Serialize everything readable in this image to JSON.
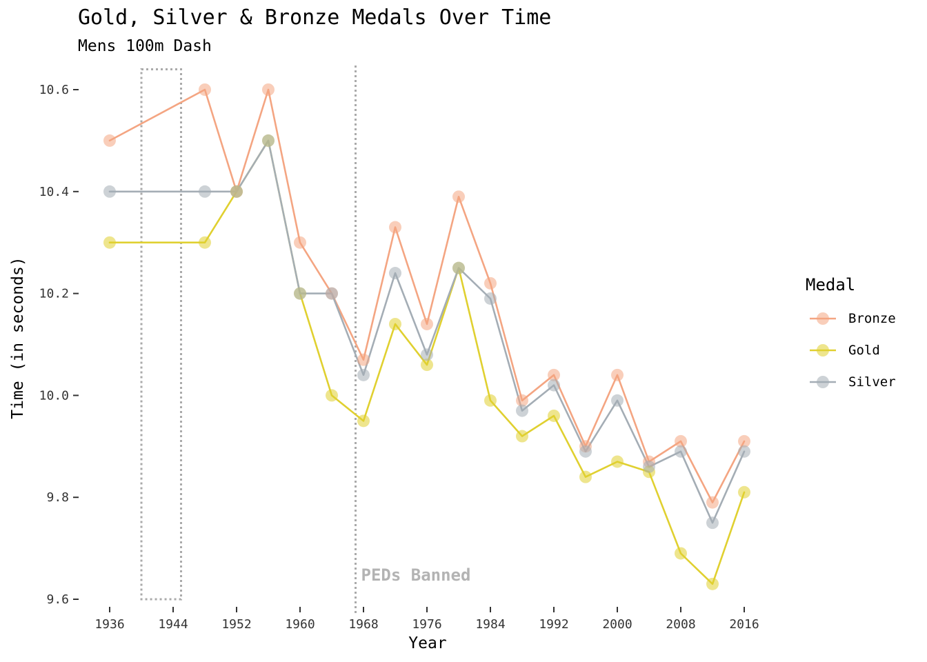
{
  "chart_data": {
    "type": "line",
    "title": "Gold, Silver & Bronze Medals Over Time",
    "subtitle": "Mens 100m Dash",
    "xlabel": "Year",
    "ylabel": "Time (in seconds)",
    "xlim": [
      1934,
      2020
    ],
    "ylim": [
      9.6,
      10.65
    ],
    "x_ticks": [
      1936,
      1944,
      1952,
      1960,
      1968,
      1976,
      1984,
      1992,
      2000,
      2008,
      2016
    ],
    "y_ticks": [
      9.6,
      9.8,
      10.0,
      10.2,
      10.4,
      10.6
    ],
    "y_tick_labels": [
      "9.6",
      "9.8",
      "10.0",
      "10.2",
      "10.4",
      "10.6"
    ],
    "grid": false,
    "legend": {
      "title": "Medal",
      "position": "right"
    },
    "x": [
      1936,
      1948,
      1952,
      1956,
      1960,
      1964,
      1968,
      1972,
      1976,
      1980,
      1984,
      1988,
      1992,
      1996,
      2000,
      2004,
      2008,
      2012,
      2016
    ],
    "series": [
      {
        "name": "Bronze",
        "color": "#f4a582",
        "values": [
          10.5,
          10.6,
          10.4,
          10.6,
          10.3,
          10.2,
          10.07,
          10.33,
          10.14,
          10.39,
          10.22,
          9.99,
          10.04,
          9.9,
          10.04,
          9.87,
          9.91,
          9.79,
          9.91
        ]
      },
      {
        "name": "Gold",
        "color": "#e0d030",
        "values": [
          10.3,
          10.3,
          10.4,
          10.5,
          10.2,
          10.0,
          9.95,
          10.14,
          10.06,
          10.25,
          9.99,
          9.92,
          9.96,
          9.84,
          9.87,
          9.85,
          9.69,
          9.63,
          9.81
        ]
      },
      {
        "name": "Silver",
        "color": "#a4adb5",
        "values": [
          10.4,
          10.4,
          10.4,
          10.5,
          10.2,
          10.2,
          10.04,
          10.24,
          10.08,
          10.25,
          10.19,
          9.97,
          10.02,
          9.89,
          9.99,
          9.86,
          9.89,
          9.75,
          9.89
        ]
      }
    ],
    "annotations": {
      "gap_rect": {
        "x_start": 1940,
        "x_end": 1945,
        "y_bottom": 9.6,
        "y_top": 10.64,
        "style": "dotted",
        "color": "#aaaaaa"
      },
      "vline": {
        "x": 1967,
        "label": "PEDs Banned",
        "style": "dotted",
        "color": "#aaaaaa"
      }
    }
  }
}
